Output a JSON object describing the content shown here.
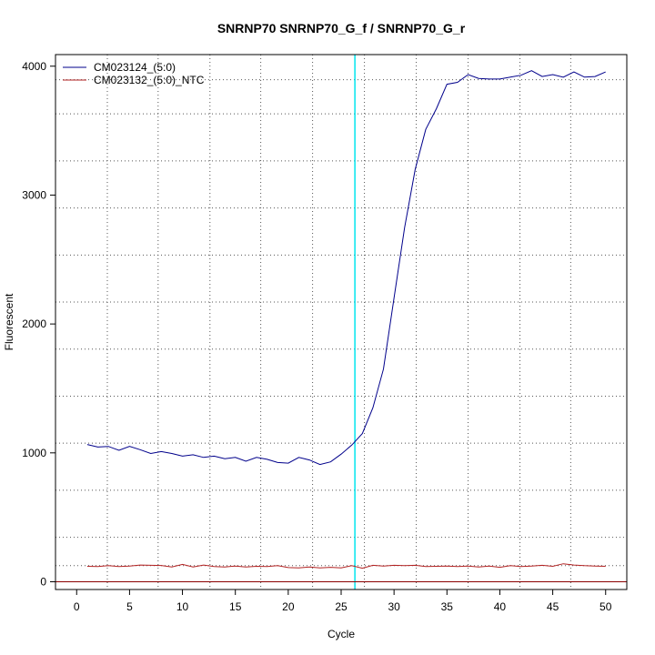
{
  "chart_data": {
    "type": "line",
    "title": "SNRNP70  SNRNP70_G_f / SNRNP70_G_r",
    "xlabel": "Cycle",
    "ylabel": "Fluorescent",
    "xlim": [
      -2,
      52
    ],
    "ylim": [
      -60,
      4090
    ],
    "x_ticks": [
      0,
      5,
      10,
      15,
      20,
      25,
      30,
      35,
      40,
      45,
      50
    ],
    "y_ticks": [
      0,
      1000,
      2000,
      3000,
      4000
    ],
    "x_grid": [
      2.9,
      7.7,
      12.6,
      17.4,
      22.3,
      27.2,
      32.1,
      37.0,
      41.9,
      46.7
    ],
    "y_grid": [
      125,
      345,
      710,
      1075,
      1440,
      1805,
      2170,
      2535,
      2900,
      3265,
      3630,
      3895
    ],
    "threshold_cycle": 26.3,
    "threshold_color": "#00e5ee",
    "baseline_y": 0,
    "baseline_color": "#8b0000",
    "grid": true,
    "legend_position": "top-left",
    "series": [
      {
        "name": "CM023124_(5:0)",
        "color": "#00008b",
        "x": [
          1,
          2,
          3,
          4,
          5,
          6,
          7,
          8,
          9,
          10,
          11,
          12,
          13,
          14,
          15,
          16,
          17,
          18,
          19,
          20,
          21,
          22,
          23,
          24,
          25,
          26,
          27,
          28,
          29,
          30,
          31,
          32,
          33,
          34,
          35,
          36,
          37,
          38,
          39,
          40,
          41,
          42,
          43,
          44,
          45,
          46,
          47,
          48,
          49,
          50
        ],
        "values": [
          1065,
          1045,
          1050,
          1020,
          1050,
          1025,
          995,
          1010,
          995,
          975,
          985,
          965,
          975,
          955,
          965,
          935,
          965,
          950,
          925,
          920,
          965,
          945,
          910,
          930,
          990,
          1060,
          1150,
          1350,
          1650,
          2200,
          2750,
          3200,
          3510,
          3670,
          3860,
          3875,
          3935,
          3905,
          3900,
          3900,
          3915,
          3930,
          3965,
          3920,
          3935,
          3915,
          3955,
          3915,
          3920,
          3955
        ]
      },
      {
        "name": "CM023132_(5:0)_NTC",
        "color": "#b22222",
        "x": [
          1,
          2,
          3,
          4,
          5,
          6,
          7,
          8,
          9,
          10,
          11,
          12,
          13,
          14,
          15,
          16,
          17,
          18,
          19,
          20,
          21,
          22,
          23,
          24,
          25,
          26,
          27,
          28,
          29,
          30,
          31,
          32,
          33,
          34,
          35,
          36,
          37,
          38,
          39,
          40,
          41,
          42,
          43,
          44,
          45,
          46,
          47,
          48,
          49,
          50
        ],
        "values": [
          120,
          118,
          125,
          118,
          122,
          130,
          128,
          126,
          115,
          135,
          115,
          130,
          118,
          115,
          122,
          115,
          120,
          118,
          125,
          110,
          108,
          115,
          108,
          112,
          108,
          125,
          105,
          128,
          122,
          128,
          125,
          128,
          118,
          120,
          122,
          118,
          122,
          115,
          122,
          112,
          125,
          118,
          122,
          128,
          120,
          140,
          130,
          125,
          122,
          120
        ]
      }
    ]
  }
}
